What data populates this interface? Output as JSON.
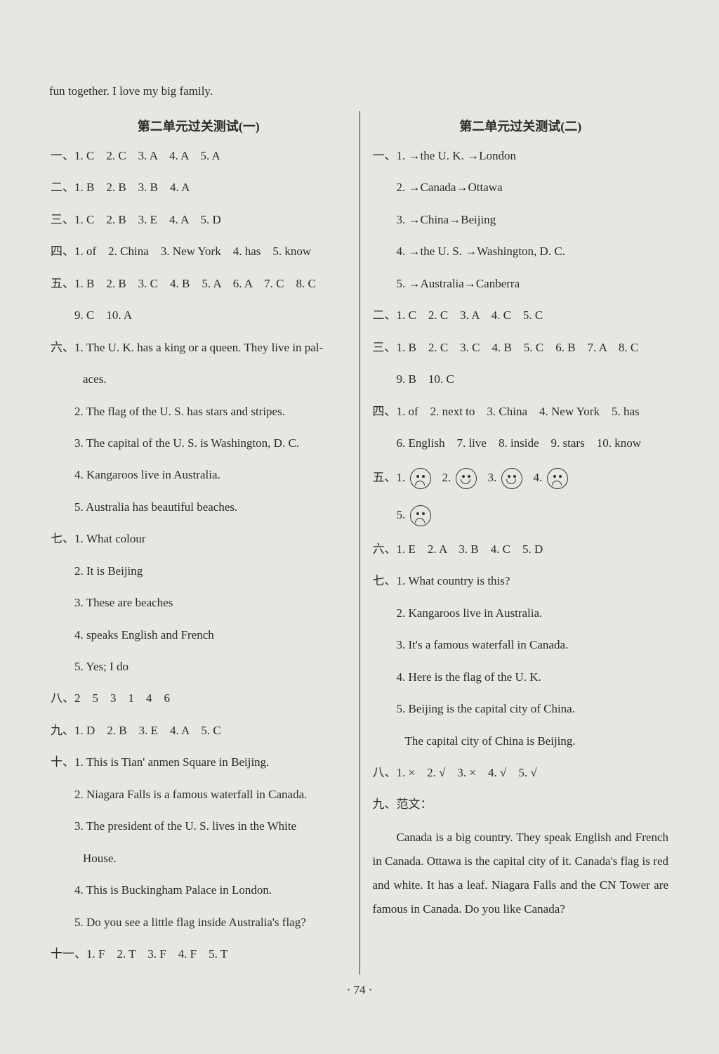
{
  "intro": "fun together. I love my big family.",
  "left": {
    "title": "第二单元过关测试(一)",
    "l1": "一、1. C　2. C　3. A　4. A　5. A",
    "l2": "二、1. B　2. B　3. B　4. A",
    "l3": "三、1. C　2. B　3. E　4. A　5. D",
    "l4": "四、1. of　2. China　3. New York　4. has　5. know",
    "l5": "五、1. B　2. B　3. C　4. B　5. A　6. A　7. C　8. C",
    "l5b": "9. C　10. A",
    "l6": "六、1. The U. K. has a king or a queen. They live in pal-",
    "l6b": "aces.",
    "l6_2": "2. The flag of the U. S. has stars and stripes.",
    "l6_3": "3. The capital of the U. S. is Washington, D. C.",
    "l6_4": "4. Kangaroos live in Australia.",
    "l6_5": "5. Australia has beautiful beaches.",
    "l7": "七、1. What colour",
    "l7_2": "2. It is Beijing",
    "l7_3": "3. These are beaches",
    "l7_4": "4. speaks English and French",
    "l7_5": "5. Yes; I do",
    "l8": "八、2　5　3　1　4　6",
    "l9": "九、1. D　2. B　3. E　4. A　5. C",
    "l10": "十、1. This is Tian' anmen Square in Beijing.",
    "l10_2": "2. Niagara Falls is a famous waterfall in Canada.",
    "l10_3": "3. The president of the U. S. lives in the White",
    "l10_3b": "House.",
    "l10_4": "4. This is Buckingham Palace in London.",
    "l10_5": "5. Do you see a little flag inside Australia's flag?",
    "l11": "十一、1. F　2. T　3. F　4. F　5. T"
  },
  "right": {
    "title": "第二单元过关测试(二)",
    "r1": "一、1. →the U. K. →London",
    "r1_2": "2. →Canada→Ottawa",
    "r1_3": "3. →China→Beijing",
    "r1_4": "4. →the U. S. →Washington, D. C.",
    "r1_5": "5. →Australia→Canberra",
    "r2": "二、1. C　2. C　3. A　4. C　5. C",
    "r3": "三、1. B　2. C　3. C　4. B　5. C　6. B　7. A　8. C",
    "r3b": "9. B　10. C",
    "r4": "四、1. of　2. next to　3. China　4. New York　5. has",
    "r4b": "6. English　7. live　8. inside　9. stars　10. know",
    "r5_label": "五、",
    "r5_items": [
      {
        "n": "1.",
        "mood": "sad"
      },
      {
        "n": "2.",
        "mood": "happy"
      },
      {
        "n": "3.",
        "mood": "happy"
      },
      {
        "n": "4.",
        "mood": "sad"
      },
      {
        "n": "5.",
        "mood": "sad"
      }
    ],
    "r6": "六、1. E　2. A　3. B　4. C　5. D",
    "r7": "七、1. What country is this?",
    "r7_2": "2. Kangaroos live in Australia.",
    "r7_3": "3. It's a famous waterfall in Canada.",
    "r7_4": "4. Here is the flag of the U. K.",
    "r7_5": "5. Beijing is the capital city of China.",
    "r7_5b": "The capital city of China is Beijing.",
    "r8": "八、1. ×　2. √　3. ×　4. √　5. √",
    "r9": "九、范文：",
    "r9_para": "Canada is a big country. They speak English and French in Canada. Ottawa is the capital city of it. Canada's flag is red and white. It has a leaf. Niagara Falls and the CN Tower are famous in Canada. Do you like Canada?"
  },
  "page_num": "· 74 ·"
}
